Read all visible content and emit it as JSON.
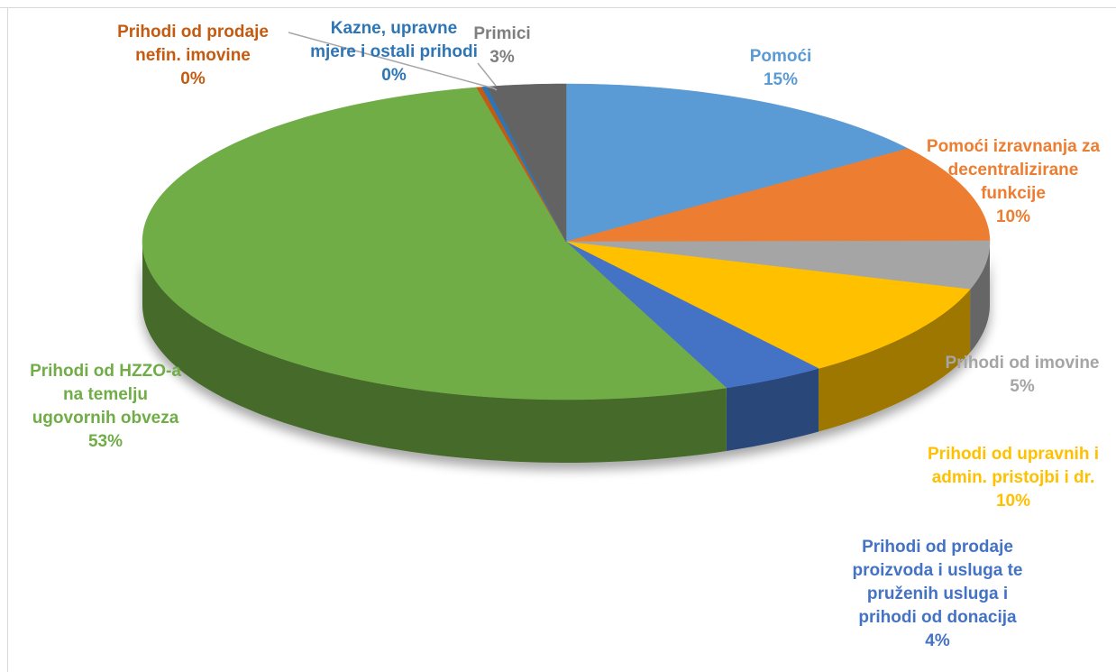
{
  "chart_data": {
    "type": "pie",
    "subtype": "3d-exploded-perspective",
    "title": "",
    "legend": "none",
    "slices": [
      {
        "name": "Pomoći",
        "value": 15,
        "label": "15%",
        "color": "#5b9bd5",
        "label_color": "#5b9bd5"
      },
      {
        "name": "Pomoći izravnanja za decentralizirane funkcije",
        "value": 10,
        "label": "10%",
        "color": "#ed7d31",
        "label_color": "#ed7d31"
      },
      {
        "name": "Prihodi od imovine",
        "value": 5,
        "label": "5%",
        "color": "#a5a5a5",
        "label_color": "#a5a5a5"
      },
      {
        "name": "Prihodi od upravnih i admin. pristojbi i dr.",
        "value": 10,
        "label": "10%",
        "color": "#ffc000",
        "label_color": "#ffc000"
      },
      {
        "name": "Prihodi od prodaje proizvoda i usluga te pruženih usluga i prihodi od donacija",
        "value": 4,
        "label": "4%",
        "color": "#4472c4",
        "label_color": "#4472c4"
      },
      {
        "name": "Prihodi od HZZO-a na temelju ugovornih obveza",
        "value": 53,
        "label": "53%",
        "color": "#70ad47",
        "label_color": "#70ad47"
      },
      {
        "name": "Prihodi od prodaje nefin. imovine",
        "value": 0.2,
        "label": "0%",
        "color": "#c55a11",
        "label_color": "#c55a11"
      },
      {
        "name": "Kazne, upravne mjere i ostali prihodi",
        "value": 0.2,
        "label": "0%",
        "color": "#2e75b6",
        "label_color": "#2e75b6"
      },
      {
        "name": "Primici",
        "value": 3,
        "label": "3%",
        "color": "#636363",
        "label_color": "#7f7f7f"
      }
    ],
    "label_lines": [
      [
        "Pomoći"
      ],
      [
        "Pomoći izravnanja za",
        "decentralizirane",
        "funkcije"
      ],
      [
        "Prihodi od imovine"
      ],
      [
        "Prihodi od upravnih i",
        "admin. pristojbi i dr."
      ],
      [
        "Prihodi od prodaje",
        "proizvoda i usluga te",
        "pruženih usluga i",
        "prihodi od donacija"
      ],
      [
        "Prihodi od HZZO-a",
        "na temelju",
        "ugovornih obveza"
      ],
      [
        "Prihodi od prodaje",
        "nefin. imovine"
      ],
      [
        "Kazne, upravne",
        "mjere i ostali prihodi"
      ],
      [
        "Primici"
      ]
    ]
  }
}
